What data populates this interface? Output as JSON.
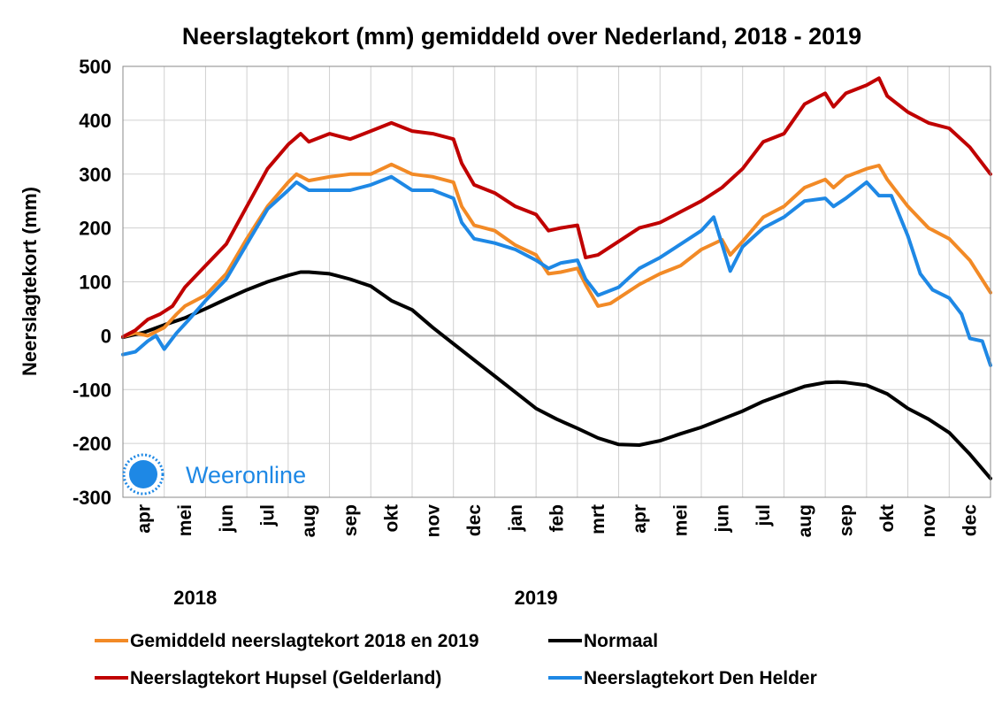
{
  "chart_data": {
    "type": "line",
    "title": "Neerslagtekort (mm) gemiddeld over Nederland, 2018 - 2019",
    "xlabel": "",
    "ylabel": "Neerslagtekort (mm)",
    "ylim": [
      -300,
      500
    ],
    "yticks": [
      "500",
      "400",
      "300",
      "200",
      "100",
      "0",
      "-100",
      "-200",
      "-300"
    ],
    "grid": true,
    "legend_position": "bottom",
    "months": [
      "apr",
      "mei",
      "jun",
      "jul",
      "aug",
      "sep",
      "okt",
      "nov",
      "dec",
      "jan",
      "feb",
      "mrt",
      "apr",
      "mei",
      "jun",
      "jul",
      "aug",
      "sep",
      "okt",
      "nov",
      "dec"
    ],
    "years": [
      {
        "label": "2018",
        "month_index": 0
      },
      {
        "label": "2019",
        "month_index": 9
      }
    ],
    "x_unit": "months since 1 April 2018",
    "series": [
      {
        "name": "Normaal",
        "color": "#000000",
        "points": [
          [
            0,
            -3
          ],
          [
            0.5,
            6
          ],
          [
            1,
            20
          ],
          [
            1.5,
            33
          ],
          [
            2,
            50
          ],
          [
            2.5,
            68
          ],
          [
            3,
            85
          ],
          [
            3.5,
            100
          ],
          [
            4,
            112
          ],
          [
            4.3,
            118
          ],
          [
            4.5,
            118
          ],
          [
            5,
            115
          ],
          [
            5.5,
            105
          ],
          [
            6,
            92
          ],
          [
            6.5,
            65
          ],
          [
            7,
            48
          ],
          [
            7.5,
            15
          ],
          [
            8,
            -15
          ],
          [
            8.5,
            -45
          ],
          [
            9,
            -75
          ],
          [
            9.5,
            -105
          ],
          [
            10,
            -135
          ],
          [
            10.5,
            -155
          ],
          [
            11,
            -172
          ],
          [
            11.5,
            -190
          ],
          [
            12,
            -202
          ],
          [
            12.5,
            -203
          ],
          [
            13,
            -195
          ],
          [
            13.5,
            -182
          ],
          [
            14,
            -170
          ],
          [
            14.5,
            -155
          ],
          [
            15,
            -140
          ],
          [
            15.5,
            -122
          ],
          [
            16,
            -108
          ],
          [
            16.5,
            -94
          ],
          [
            17,
            -87
          ],
          [
            17.3,
            -86
          ],
          [
            17.5,
            -87
          ],
          [
            18,
            -92
          ],
          [
            18.5,
            -108
          ],
          [
            19,
            -135
          ],
          [
            19.5,
            -155
          ],
          [
            20,
            -180
          ],
          [
            20.5,
            -220
          ],
          [
            21,
            -265
          ]
        ]
      },
      {
        "name": "Gemiddeld neerslagtekort 2018 en 2019",
        "color": "#f28a26",
        "points": [
          [
            0,
            -2
          ],
          [
            0.3,
            5
          ],
          [
            0.6,
            0
          ],
          [
            1,
            15
          ],
          [
            1.3,
            40
          ],
          [
            1.5,
            55
          ],
          [
            2,
            75
          ],
          [
            2.5,
            115
          ],
          [
            3,
            180
          ],
          [
            3.5,
            240
          ],
          [
            4,
            285
          ],
          [
            4.2,
            300
          ],
          [
            4.5,
            288
          ],
          [
            5,
            295
          ],
          [
            5.5,
            300
          ],
          [
            6,
            300
          ],
          [
            6.5,
            318
          ],
          [
            7,
            300
          ],
          [
            7.5,
            295
          ],
          [
            8,
            285
          ],
          [
            8.2,
            240
          ],
          [
            8.5,
            205
          ],
          [
            9,
            195
          ],
          [
            9.5,
            168
          ],
          [
            10,
            150
          ],
          [
            10.3,
            115
          ],
          [
            10.6,
            118
          ],
          [
            11,
            125
          ],
          [
            11.2,
            95
          ],
          [
            11.5,
            55
          ],
          [
            11.8,
            60
          ],
          [
            12,
            70
          ],
          [
            12.5,
            95
          ],
          [
            13,
            115
          ],
          [
            13.5,
            130
          ],
          [
            14,
            160
          ],
          [
            14.5,
            178
          ],
          [
            14.7,
            150
          ],
          [
            15,
            175
          ],
          [
            15.5,
            220
          ],
          [
            16,
            240
          ],
          [
            16.5,
            275
          ],
          [
            17,
            290
          ],
          [
            17.2,
            275
          ],
          [
            17.5,
            295
          ],
          [
            18,
            310
          ],
          [
            18.3,
            316
          ],
          [
            18.5,
            290
          ],
          [
            19,
            240
          ],
          [
            19.5,
            200
          ],
          [
            20,
            180
          ],
          [
            20.5,
            140
          ],
          [
            21,
            80
          ]
        ]
      },
      {
        "name": "Neerslagtekort Hupsel (Gelderland)",
        "color": "#c00000",
        "points": [
          [
            0,
            -2
          ],
          [
            0.3,
            10
          ],
          [
            0.6,
            30
          ],
          [
            0.9,
            40
          ],
          [
            1.2,
            55
          ],
          [
            1.5,
            90
          ],
          [
            2,
            130
          ],
          [
            2.5,
            170
          ],
          [
            3,
            240
          ],
          [
            3.5,
            310
          ],
          [
            4,
            355
          ],
          [
            4.3,
            375
          ],
          [
            4.5,
            360
          ],
          [
            5,
            375
          ],
          [
            5.5,
            365
          ],
          [
            6,
            380
          ],
          [
            6.5,
            395
          ],
          [
            7,
            380
          ],
          [
            7.5,
            375
          ],
          [
            8,
            365
          ],
          [
            8.2,
            320
          ],
          [
            8.5,
            280
          ],
          [
            9,
            265
          ],
          [
            9.5,
            240
          ],
          [
            10,
            225
          ],
          [
            10.3,
            195
          ],
          [
            10.6,
            200
          ],
          [
            11,
            205
          ],
          [
            11.2,
            145
          ],
          [
            11.5,
            150
          ],
          [
            12,
            175
          ],
          [
            12.5,
            200
          ],
          [
            13,
            210
          ],
          [
            13.5,
            230
          ],
          [
            14,
            250
          ],
          [
            14.5,
            275
          ],
          [
            15,
            310
          ],
          [
            15.5,
            360
          ],
          [
            16,
            375
          ],
          [
            16.5,
            430
          ],
          [
            17,
            450
          ],
          [
            17.2,
            425
          ],
          [
            17.5,
            450
          ],
          [
            18,
            465
          ],
          [
            18.3,
            478
          ],
          [
            18.5,
            445
          ],
          [
            19,
            415
          ],
          [
            19.5,
            395
          ],
          [
            20,
            385
          ],
          [
            20.5,
            350
          ],
          [
            21,
            300
          ]
        ]
      },
      {
        "name": "Neerslagtekort Den Helder",
        "color": "#1e88e5",
        "points": [
          [
            0,
            -35
          ],
          [
            0.3,
            -30
          ],
          [
            0.6,
            -10
          ],
          [
            0.8,
            0
          ],
          [
            1,
            -25
          ],
          [
            1.3,
            5
          ],
          [
            1.6,
            30
          ],
          [
            2,
            65
          ],
          [
            2.5,
            105
          ],
          [
            3,
            170
          ],
          [
            3.5,
            235
          ],
          [
            4,
            270
          ],
          [
            4.2,
            285
          ],
          [
            4.5,
            270
          ],
          [
            5,
            270
          ],
          [
            5.5,
            270
          ],
          [
            6,
            280
          ],
          [
            6.5,
            295
          ],
          [
            7,
            270
          ],
          [
            7.5,
            270
          ],
          [
            8,
            255
          ],
          [
            8.2,
            210
          ],
          [
            8.5,
            180
          ],
          [
            9,
            172
          ],
          [
            9.5,
            160
          ],
          [
            10,
            140
          ],
          [
            10.3,
            125
          ],
          [
            10.6,
            135
          ],
          [
            11,
            140
          ],
          [
            11.2,
            105
          ],
          [
            11.5,
            75
          ],
          [
            12,
            90
          ],
          [
            12.5,
            125
          ],
          [
            13,
            145
          ],
          [
            13.5,
            170
          ],
          [
            14,
            195
          ],
          [
            14.3,
            220
          ],
          [
            14.5,
            170
          ],
          [
            14.7,
            120
          ],
          [
            15,
            165
          ],
          [
            15.5,
            200
          ],
          [
            16,
            220
          ],
          [
            16.5,
            250
          ],
          [
            17,
            255
          ],
          [
            17.2,
            240
          ],
          [
            17.5,
            255
          ],
          [
            18,
            285
          ],
          [
            18.3,
            260
          ],
          [
            18.6,
            260
          ],
          [
            19,
            185
          ],
          [
            19.3,
            115
          ],
          [
            19.6,
            85
          ],
          [
            20,
            70
          ],
          [
            20.3,
            40
          ],
          [
            20.5,
            -5
          ],
          [
            20.8,
            -10
          ],
          [
            21,
            -55
          ]
        ]
      }
    ]
  },
  "legend": {
    "items": [
      {
        "label": "Gemiddeld neerslagtekort 2018 en 2019",
        "color": "#f28a26"
      },
      {
        "label": "Normaal",
        "color": "#000000"
      },
      {
        "label": "Neerslagtekort Hupsel (Gelderland)",
        "color": "#c00000"
      },
      {
        "label": "Neerslagtekort Den Helder",
        "color": "#1e88e5"
      }
    ]
  },
  "brand": {
    "name": "Weeronline",
    "color": "#1e88e5",
    "icon": "sun-logo-icon"
  }
}
